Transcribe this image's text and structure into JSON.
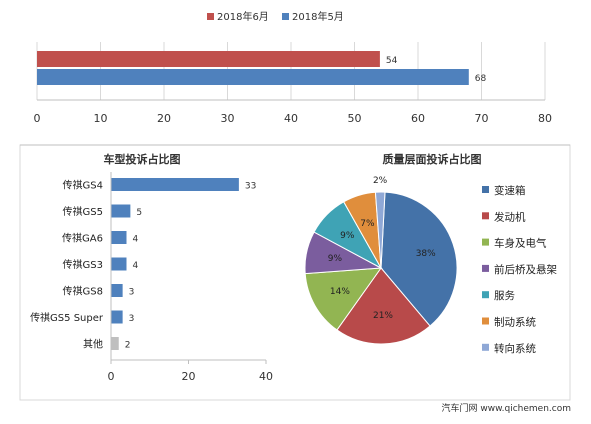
{
  "chart_data": [
    {
      "type": "bar",
      "orientation": "horizontal",
      "categories": [
        ""
      ],
      "series": [
        {
          "name": "2018年6月",
          "color": "#C0504D",
          "values": [
            54
          ]
        },
        {
          "name": "2018年5月",
          "color": "#4F81BD",
          "values": [
            68
          ]
        }
      ],
      "xlim": [
        0,
        80
      ],
      "xticks": [
        0,
        10,
        20,
        30,
        40,
        50,
        60,
        70,
        80
      ],
      "legend": "top",
      "grid": true
    },
    {
      "type": "bar",
      "orientation": "horizontal",
      "title": "车型投诉占比图",
      "categories": [
        "传祺GS4",
        "传祺GS5",
        "传祺GA6",
        "传祺GS3",
        "传祺GS8",
        "传祺GS5 Super",
        "其他"
      ],
      "values": [
        33,
        5,
        4,
        4,
        3,
        3,
        2
      ],
      "colors": [
        "#4F81BD",
        "#4F81BD",
        "#4F81BD",
        "#4F81BD",
        "#4F81BD",
        "#4F81BD",
        "#BFBFBF"
      ],
      "xlim": [
        0,
        40
      ],
      "xticks": [
        0,
        20,
        40
      ],
      "grid": false
    },
    {
      "type": "pie",
      "title": "质量层面投诉占比图",
      "labels": [
        "变速箱",
        "发动机",
        "车身及电气",
        "前后桥及悬架",
        "服务",
        "制动系统",
        "转向系统"
      ],
      "values": [
        38,
        21,
        14,
        9,
        9,
        7,
        2
      ],
      "value_labels": [
        "38%",
        "21%",
        "14%",
        "9%",
        "9%",
        "7%",
        "2%"
      ],
      "colors": [
        "#4472A8",
        "#B84A4A",
        "#92B552",
        "#7B5D9E",
        "#3FA3B5",
        "#E08E3C",
        "#8FA8D6"
      ],
      "legend": "right"
    }
  ],
  "footer": {
    "watermark": "汽车门网 www.qichemen.com"
  }
}
